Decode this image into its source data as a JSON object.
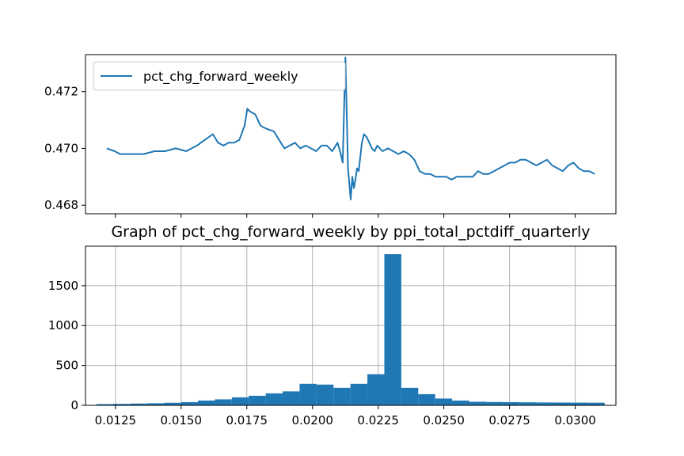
{
  "colors": {
    "series": "#1f77b4",
    "grid": "#b0b0b0",
    "axis": "#000000"
  },
  "chart_data": [
    {
      "type": "line",
      "title": "",
      "xlabel": "",
      "ylabel": "",
      "ylim": [
        0.4677,
        0.4733
      ],
      "xlim": [
        0.0,
        1.0
      ],
      "grid": false,
      "legend_position": "top-left",
      "y_ticks": [
        0.468,
        0.47,
        0.472
      ],
      "y_tick_labels": [
        "0.468",
        "0.470",
        "0.472"
      ],
      "x_tick_labels": [],
      "series": [
        {
          "name": "pct_chg_forward_weekly",
          "x": [
            0.04,
            0.055,
            0.065,
            0.08,
            0.095,
            0.11,
            0.13,
            0.15,
            0.17,
            0.19,
            0.21,
            0.225,
            0.24,
            0.25,
            0.26,
            0.27,
            0.28,
            0.29,
            0.3,
            0.305,
            0.31,
            0.32,
            0.33,
            0.34,
            0.355,
            0.365,
            0.375,
            0.385,
            0.395,
            0.405,
            0.415,
            0.425,
            0.435,
            0.445,
            0.455,
            0.465,
            0.475,
            0.48,
            0.485,
            0.49,
            0.495,
            0.5,
            0.503,
            0.506,
            0.509,
            0.512,
            0.515,
            0.518,
            0.521,
            0.525,
            0.53,
            0.535,
            0.54,
            0.545,
            0.55,
            0.56,
            0.57,
            0.58,
            0.59,
            0.6,
            0.61,
            0.62,
            0.63,
            0.64,
            0.65,
            0.66,
            0.67,
            0.68,
            0.69,
            0.7,
            0.71,
            0.72,
            0.73,
            0.74,
            0.75,
            0.76,
            0.77,
            0.78,
            0.79,
            0.8,
            0.81,
            0.82,
            0.83,
            0.84,
            0.85,
            0.86,
            0.87,
            0.88,
            0.89,
            0.9,
            0.91,
            0.92,
            0.93,
            0.94,
            0.95,
            0.96
          ],
          "values": [
            0.47,
            0.4699,
            0.4698,
            0.4698,
            0.4698,
            0.4698,
            0.4699,
            0.4699,
            0.47,
            0.4699,
            0.4701,
            0.4703,
            0.4705,
            0.4702,
            0.4701,
            0.4702,
            0.4702,
            0.4703,
            0.4708,
            0.4714,
            0.4713,
            0.4712,
            0.4708,
            0.4707,
            0.4706,
            0.4703,
            0.47,
            0.4701,
            0.4702,
            0.47,
            0.4701,
            0.47,
            0.4699,
            0.4701,
            0.4701,
            0.4699,
            0.4702,
            0.4699,
            0.4695,
            0.4732,
            0.4693,
            0.4682,
            0.469,
            0.4686,
            0.4689,
            0.4693,
            0.4692,
            0.4697,
            0.4702,
            0.4705,
            0.4704,
            0.4702,
            0.47,
            0.4699,
            0.4701,
            0.4699,
            0.47,
            0.4699,
            0.4698,
            0.4699,
            0.4698,
            0.4696,
            0.4692,
            0.4691,
            0.4691,
            0.469,
            0.469,
            0.469,
            0.4689,
            0.469,
            0.469,
            0.469,
            0.469,
            0.4692,
            0.4691,
            0.4691,
            0.4692,
            0.4693,
            0.4694,
            0.4695,
            0.4695,
            0.4696,
            0.4696,
            0.4695,
            0.4694,
            0.4695,
            0.4696,
            0.4694,
            0.4693,
            0.4692,
            0.4694,
            0.4695,
            0.4693,
            0.4692,
            0.4692,
            0.4691
          ]
        }
      ]
    },
    {
      "type": "bar",
      "title": "Graph of pct_chg_forward_weekly by ppi_total_pctdiff_quarterly",
      "xlabel": "",
      "ylabel": "",
      "xlim": [
        0.01136,
        0.03155
      ],
      "ylim": [
        0,
        1995
      ],
      "grid": true,
      "x_ticks": [
        0.0125,
        0.015,
        0.0175,
        0.02,
        0.0225,
        0.025,
        0.0275,
        0.03
      ],
      "x_tick_labels": [
        "0.0125",
        "0.0150",
        "0.0175",
        "0.0200",
        "0.0225",
        "0.0250",
        "0.0275",
        "0.0300"
      ],
      "y_ticks": [
        0,
        500,
        1000,
        1500
      ],
      "y_tick_labels": [
        "0",
        "500",
        "1000",
        "1500"
      ],
      "bin_start": 0.01177,
      "bin_width": 0.000645,
      "values": [
        15,
        18,
        22,
        26,
        32,
        40,
        60,
        75,
        100,
        120,
        150,
        175,
        270,
        260,
        220,
        270,
        390,
        1895,
        220,
        140,
        85,
        60,
        45,
        42,
        40,
        38,
        36,
        35,
        34,
        33
      ]
    }
  ]
}
